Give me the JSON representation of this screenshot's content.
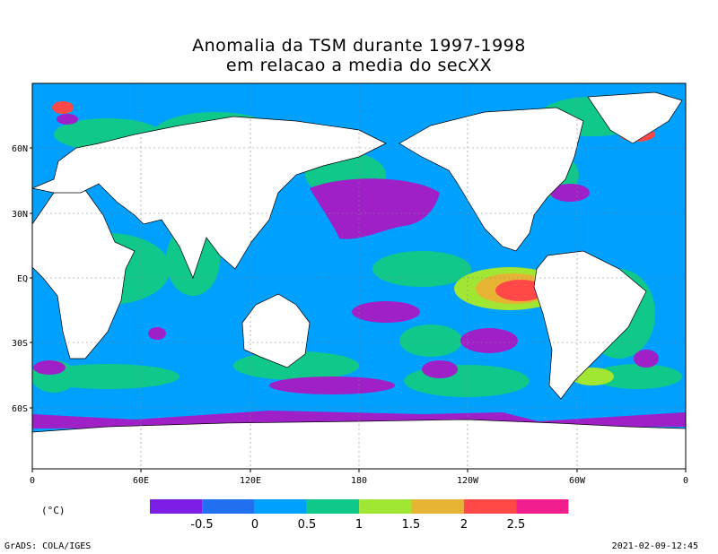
{
  "title_line1": "Anomalia da TSM durante 1997-1998",
  "title_line2": "em relacao a media do secXX",
  "map": {
    "lat_labels": [
      "60N",
      "30N",
      "EQ",
      "30S",
      "60S"
    ],
    "lon_labels": [
      "0",
      "60E",
      "120E",
      "180",
      "120W",
      "60W",
      "0"
    ]
  },
  "colorbar": {
    "units": "(°C)",
    "colors": [
      "#a020c8",
      "#7c1ee6",
      "#2070f0",
      "#00a0ff",
      "#10c88a",
      "#a0e632",
      "#e6b432",
      "#ff4848",
      "#f01e8c"
    ],
    "tick_labels": [
      "-0.5",
      "0",
      "0.5",
      "1",
      "1.5",
      "2",
      "2.5"
    ]
  },
  "footer": {
    "credit": "GrADS: COLA/IGES",
    "timestamp": "2021-02-09-12:45"
  }
}
